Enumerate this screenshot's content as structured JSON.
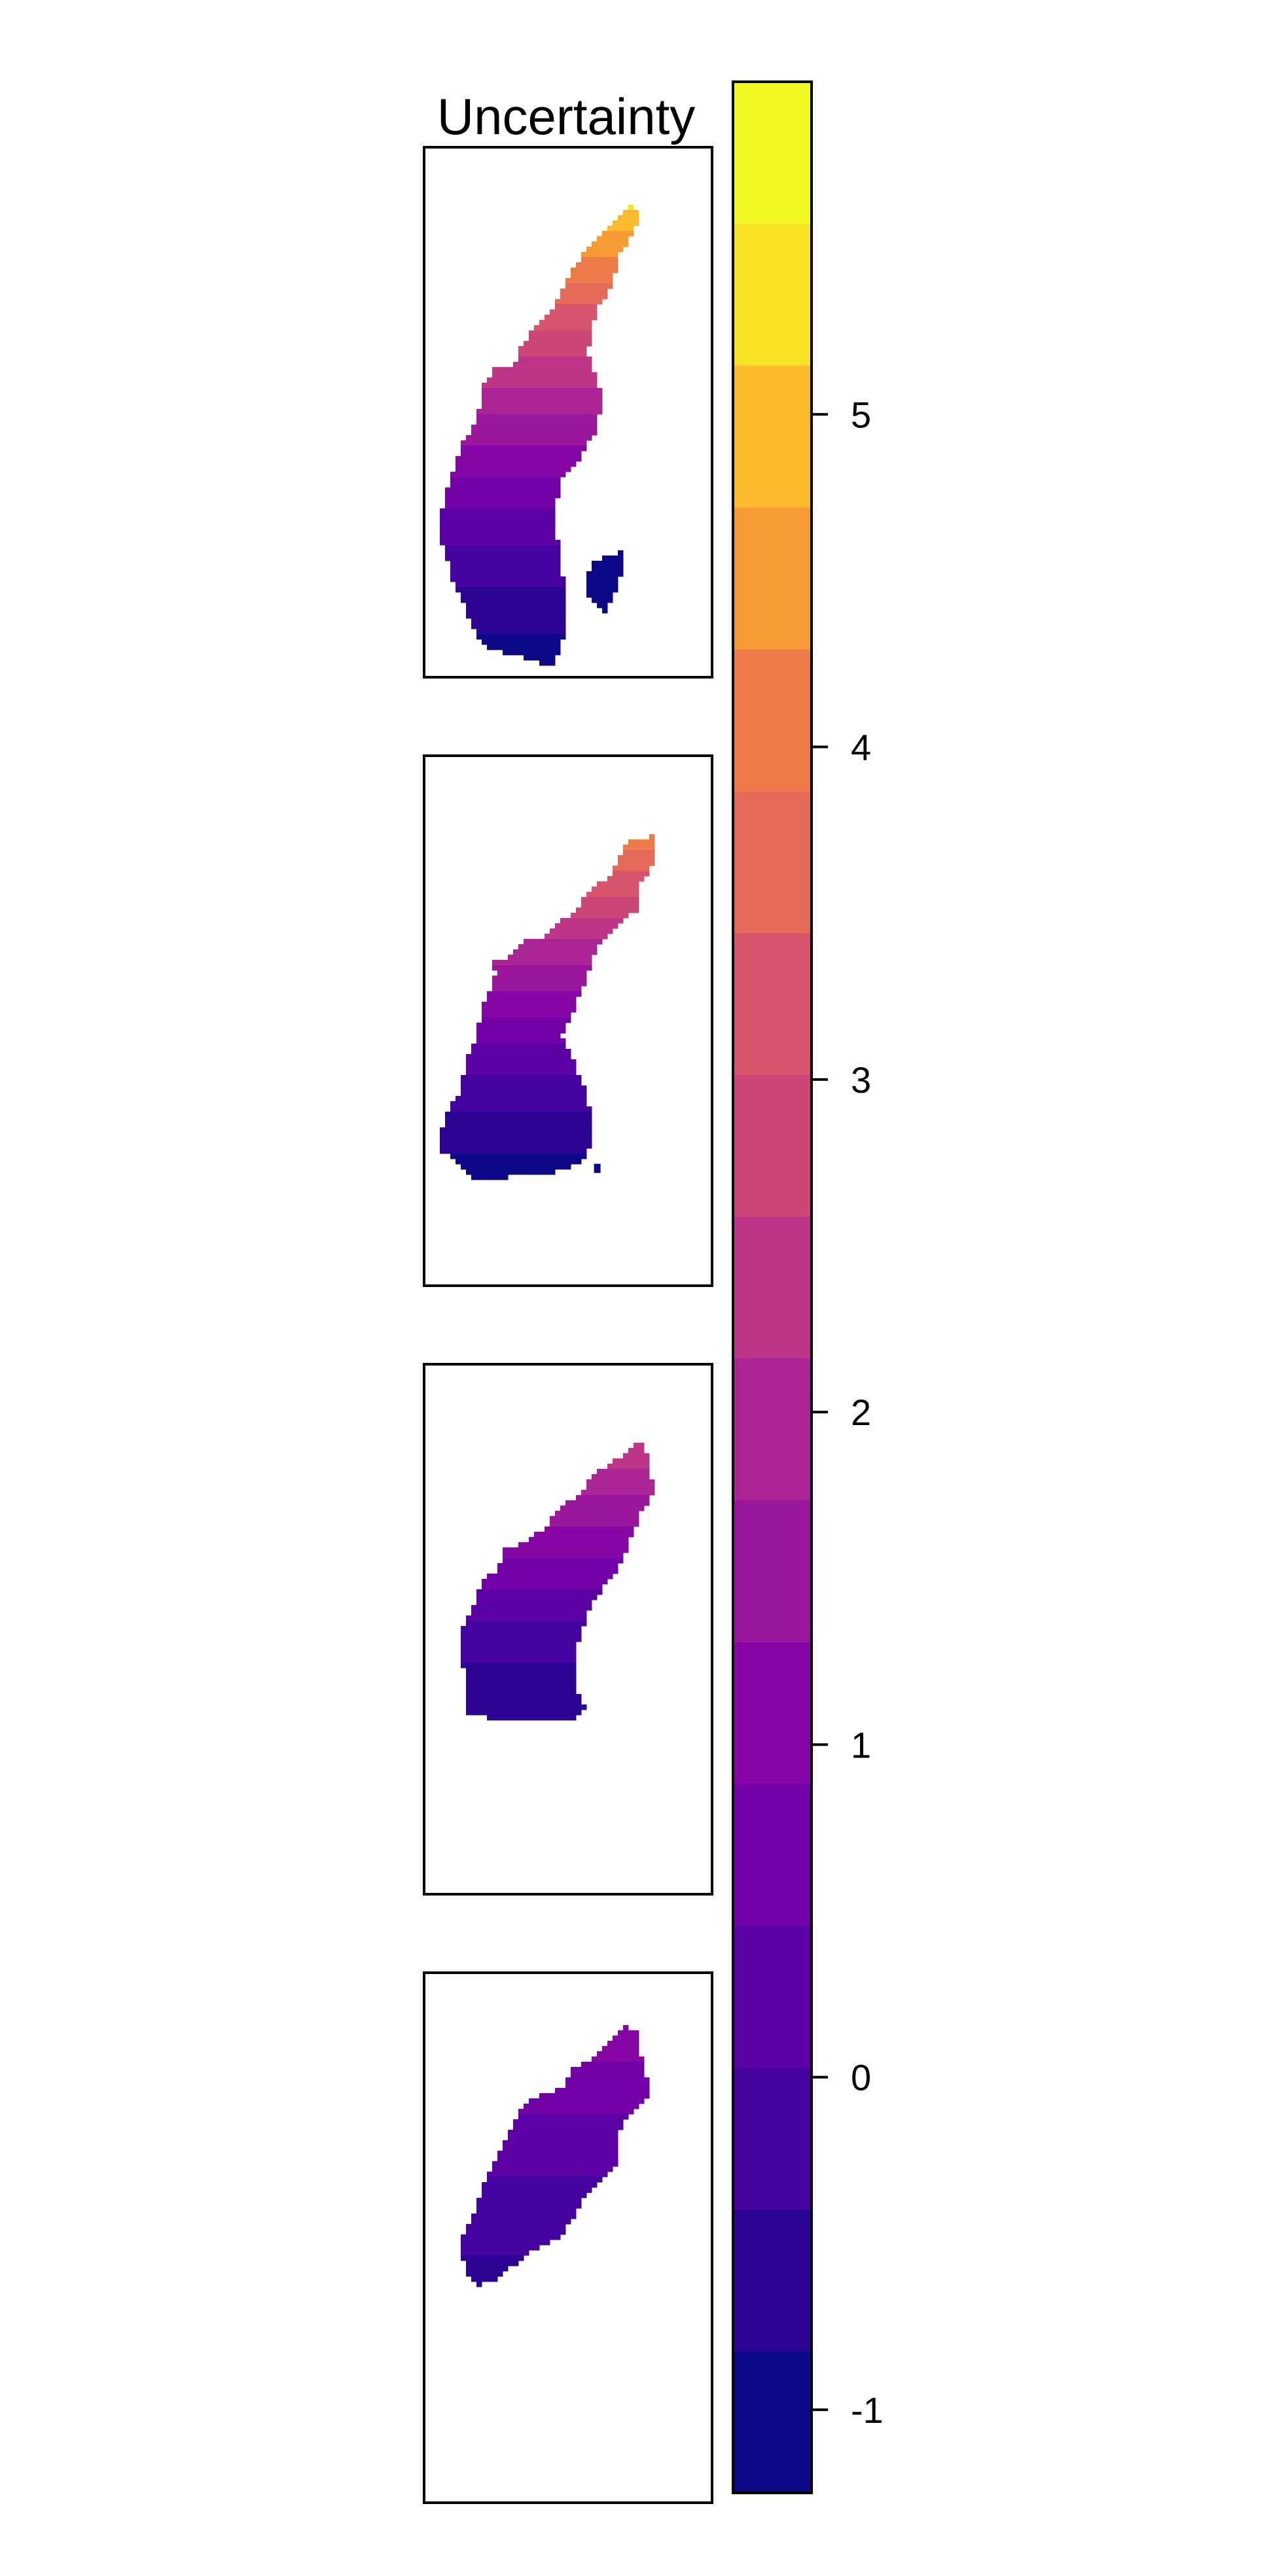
{
  "chart_data": {
    "type": "heatmap",
    "title": "Uncertainty",
    "panels": 4,
    "colorbar": {
      "ticks": [
        -1,
        0,
        1,
        2,
        3,
        4,
        5
      ],
      "tick_labels": [
        "-1",
        "0",
        "1",
        "2",
        "3",
        "4",
        "5"
      ],
      "range": [
        -1.25,
        6.0
      ],
      "palette": "plasma",
      "levels": 16,
      "colors": [
        "#0d0887",
        "#2d0594",
        "#47039f",
        "#5c01a6",
        "#7201a8",
        "#8707a6",
        "#9a179b",
        "#ab2494",
        "#bc3587",
        "#cb4778",
        "#d6556d",
        "#e36a57",
        "#ee7c4b",
        "#f69a33",
        "#fbb92c",
        "#f7e225",
        "#f0f921"
      ]
    },
    "panel_value_ranges": [
      {
        "min": -1.0,
        "max": 5.2
      },
      {
        "min": -1.0,
        "max": 4.2
      },
      {
        "min": -0.8,
        "max": 2.6
      },
      {
        "min": -0.5,
        "max": 1.2
      }
    ],
    "grid": false,
    "legend": "right"
  }
}
